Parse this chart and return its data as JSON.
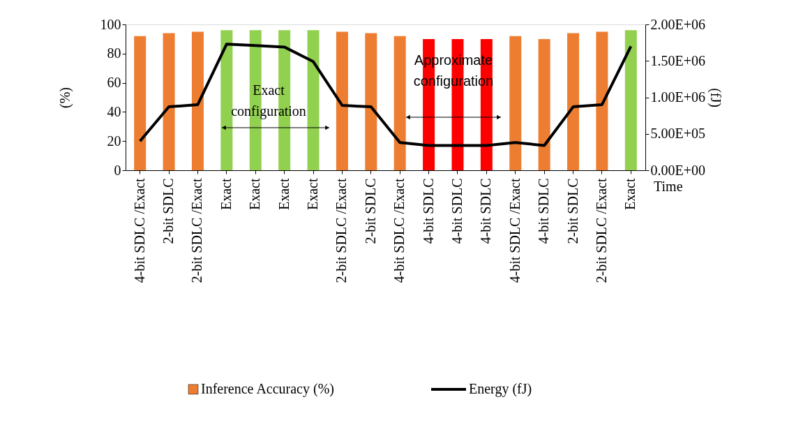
{
  "chart_data": {
    "type": "bar",
    "xlabel": "Time",
    "ylabel": "(%)",
    "y2label": "(fJ)",
    "categories": [
      "4-bit SDLC /Exact",
      "2-bit SDLC",
      "2-bit SDLC /Exact",
      "Exact",
      "Exact",
      "Exact",
      "Exact",
      "2-bit SDLC /Exact",
      "2-bit SDLC",
      "4-bit SDLC /Exact",
      "4-bit SDLC",
      "4-bit SDLC",
      "4-bit SDLC",
      "4-bit SDLC /Exact",
      "4-bit SDLC",
      "2-bit SDLC",
      "2-bit SDLC /Exact",
      "Exact"
    ],
    "series": [
      {
        "name": "Inference Accuracy (%)",
        "color": "#ed7d31",
        "colors": [
          "#ed7d31",
          "#ed7d31",
          "#ed7d31",
          "#92d050",
          "#92d050",
          "#92d050",
          "#92d050",
          "#ed7d31",
          "#ed7d31",
          "#ed7d31",
          "#ff0000",
          "#ff0000",
          "#ff0000",
          "#ed7d31",
          "#ed7d31",
          "#ed7d31",
          "#ed7d31",
          "#92d050"
        ],
        "values": [
          92,
          94,
          95,
          96,
          96,
          96,
          96,
          95,
          94,
          92,
          90,
          90,
          90,
          92,
          90,
          94,
          95,
          96
        ]
      },
      {
        "name": "Energy (fJ)",
        "type": "line",
        "axis": "y2",
        "color": "#000000",
        "values": [
          400000,
          870000,
          900000,
          1730000,
          1710000,
          1690000,
          1490000,
          890000,
          870000,
          380000,
          340000,
          340000,
          340000,
          380000,
          340000,
          870000,
          900000,
          1700000
        ]
      }
    ],
    "ylim": [
      0,
      100
    ],
    "yticks": [
      0,
      20,
      40,
      60,
      80,
      100
    ],
    "y2lim": [
      0,
      2000000
    ],
    "y2ticks": [
      {
        "value": 0,
        "label": "0.00E+00"
      },
      {
        "value": 500000,
        "label": "5.00E+05"
      },
      {
        "value": 1000000,
        "label": "1.00E+06"
      },
      {
        "value": 1500000,
        "label": "1.50E+06"
      },
      {
        "value": 2000000,
        "label": "2.00E+06"
      }
    ],
    "annotations": [
      "Exact configuration",
      "Approximate configuration"
    ],
    "grid": false,
    "legend": "bottom",
    "marker": "none",
    "line_style": "solid"
  }
}
